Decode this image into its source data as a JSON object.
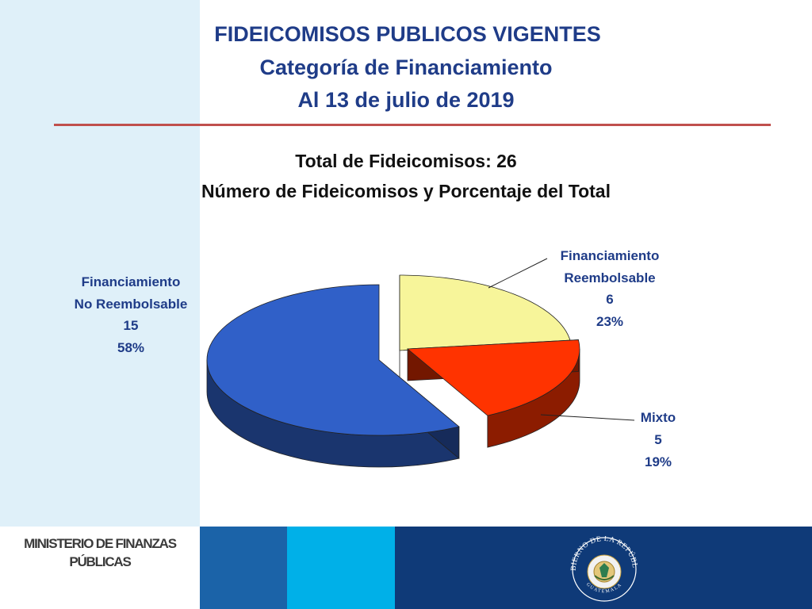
{
  "header": {
    "title_line1": "FIDEICOMISOS PUBLICOS VIGENTES",
    "title_line2": "Categoría de Financiamiento",
    "title_line3": "Al 13 de julio de 2019"
  },
  "chart_data": {
    "type": "pie",
    "title": "Total de Fideicomisos: 26",
    "subtitle": "Número de Fideicomisos y Porcentaje del Total",
    "total": 26,
    "slices": [
      {
        "label_line1": "Financiamiento",
        "label_line2": "No Reembolsable",
        "value": 15,
        "percent": "58%",
        "color": "#3060c8"
      },
      {
        "label_line1": "Financiamiento",
        "label_line2": "Reembolsable",
        "value": 6,
        "percent": "23%",
        "color": "#f7f59a"
      },
      {
        "label_line1": "Mixto",
        "label_line2": "",
        "value": 5,
        "percent": "19%",
        "color": "#ff3300"
      }
    ],
    "exploded": true,
    "style": "3d"
  },
  "footer": {
    "ministry_line1": "MINISTERIO DE FINANZAS",
    "ministry_line2": "PÚBLICAS",
    "seal_top": "GOBIERNO DE LA REPÚBLICA",
    "seal_bottom": "GUATEMALA"
  },
  "colors": {
    "title": "#1f3c88",
    "divider": "#c0504d",
    "left_band": "#dff0f9",
    "footer_blue1": "#1b63a8",
    "footer_blue2": "#00b0e8",
    "footer_navy": "#0f3a78"
  }
}
